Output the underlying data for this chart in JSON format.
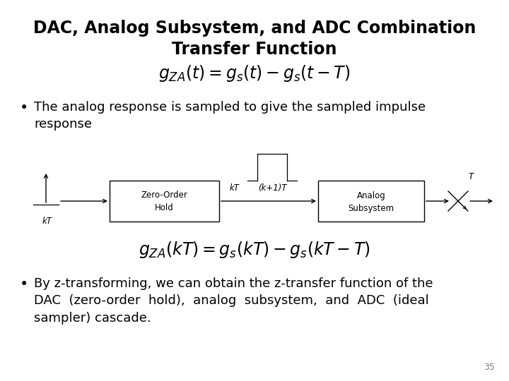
{
  "title_line1": "DAC, Analog Subsystem, and ADC Combination",
  "title_line2": "Transfer Function",
  "title_fontsize": 17,
  "bullet1_text": "The analog response is sampled to give the sampled impulse\nresponse",
  "bullet2_line1": "By z-transforming, we can obtain the z-transfer function of the",
  "bullet2_line2": "DAC  (zero-order  hold),  analog  subsystem,  and  ADC  (ideal",
  "bullet2_line3": "sampler) cascade.",
  "body_fontsize": 13,
  "formula1": "$g_{ZA}(t) = g_s(t) - g_s(t - T)$",
  "formula2": "$g_{ZA}(kT) = g_s(kT) - g_s(kT - T)$",
  "formula_fontsize": 17,
  "page_number": "35",
  "background_color": "#ffffff",
  "text_color": "#000000",
  "diagram_label_fontsize": 8.5,
  "font_family": "DejaVu Sans"
}
